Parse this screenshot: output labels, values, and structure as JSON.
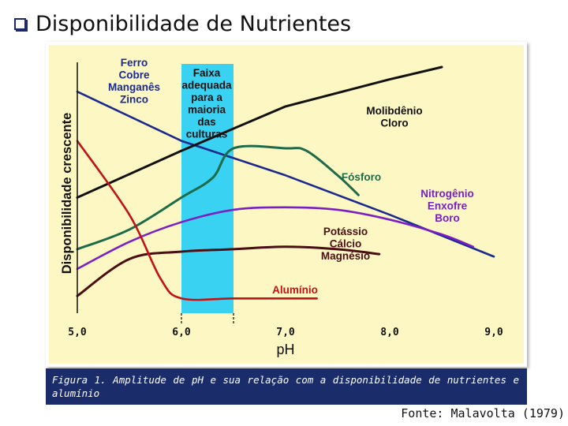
{
  "slide": {
    "title": "Disponibilidade de Nutrientes",
    "caption": "Figura 1. Amplitude de pH e sua relação com a disponibilidade de nutrientes e alumínio",
    "source": "Fonte: Malavolta (1979)"
  },
  "colors": {
    "plot_bg": "#fdf7c4",
    "band": "#39d2f2",
    "fe_cu_mn_zn": "#1b2a8c",
    "mo_cl": "#111111",
    "p": "#1e6b4a",
    "n_s_b": "#7a1fc2",
    "k_ca_mg": "#4a0f14",
    "al": "#c01414",
    "caption_bg": "#1b2c6b"
  },
  "chart_data": {
    "type": "line",
    "title": "",
    "xlabel": "pH",
    "ylabel": "Disponibilidade crescente",
    "xlim": [
      5.0,
      9.0
    ],
    "ylim": [
      0,
      10
    ],
    "x_ticks": [
      "5,0",
      "6,0",
      "7,0",
      "8,0",
      "9,0"
    ],
    "x_tick_values": [
      5.0,
      6.0,
      7.0,
      8.0,
      9.0
    ],
    "band": {
      "label": [
        "Faixa",
        "adequada",
        "para a",
        "maioria",
        "das",
        "culturas"
      ],
      "x_range": [
        6.0,
        6.5
      ]
    },
    "series": [
      {
        "key": "fe_cu_mn_zn",
        "name": [
          "Ferro",
          "Cobre",
          "Manganês",
          "Zinco"
        ],
        "x": [
          5.0,
          6.0,
          7.0,
          8.0,
          9.0
        ],
        "y": [
          9.0,
          7.0,
          5.6,
          4.0,
          2.3
        ]
      },
      {
        "key": "mo_cl",
        "name": [
          "Molibdênio",
          "Cloro"
        ],
        "x": [
          5.0,
          6.0,
          7.0,
          8.0,
          8.5
        ],
        "y": [
          4.7,
          6.6,
          8.4,
          9.5,
          10.0
        ]
      },
      {
        "key": "p",
        "name": [
          "Fósforo"
        ],
        "x": [
          5.0,
          5.5,
          6.0,
          6.3,
          6.5,
          7.0,
          7.2,
          7.5,
          7.7
        ],
        "y": [
          2.6,
          3.4,
          4.7,
          5.5,
          6.7,
          6.7,
          6.6,
          5.6,
          4.8
        ]
      },
      {
        "key": "n_s_b",
        "name": [
          "Nitrogênio",
          "Enxofre",
          "Boro"
        ],
        "x": [
          5.0,
          5.5,
          6.0,
          6.5,
          7.0,
          7.5,
          8.0,
          8.5,
          8.8
        ],
        "y": [
          1.8,
          2.9,
          3.7,
          4.2,
          4.3,
          4.2,
          3.8,
          3.2,
          2.7
        ]
      },
      {
        "key": "k_ca_mg",
        "name": [
          "Potássio",
          "Cálcio",
          "Magnésio"
        ],
        "x": [
          5.0,
          5.5,
          6.0,
          6.5,
          7.0,
          7.5,
          7.9
        ],
        "y": [
          0.7,
          2.2,
          2.5,
          2.6,
          2.7,
          2.6,
          2.4
        ]
      },
      {
        "key": "al",
        "name": [
          "Alumínio"
        ],
        "x": [
          5.0,
          5.5,
          5.8,
          6.0,
          6.5,
          7.0,
          7.3
        ],
        "y": [
          7.0,
          4.0,
          1.4,
          0.6,
          0.6,
          0.6,
          0.6
        ]
      }
    ]
  }
}
